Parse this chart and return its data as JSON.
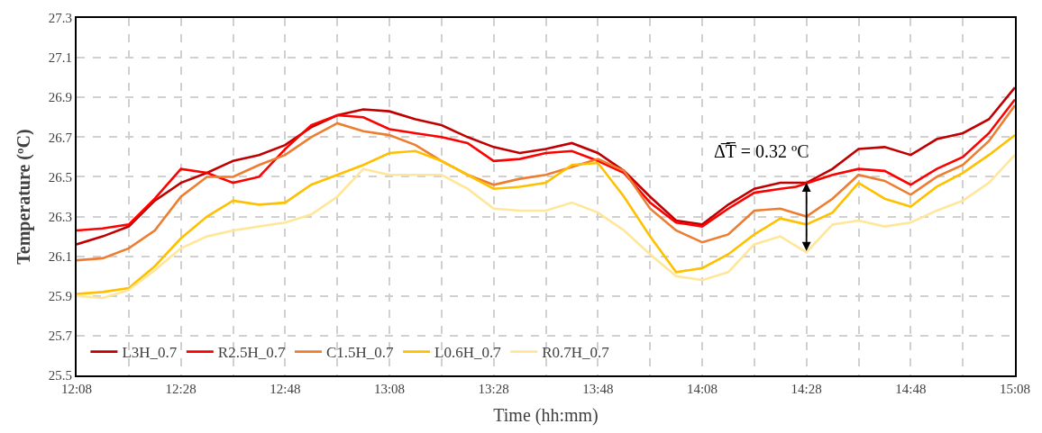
{
  "chart_data": {
    "type": "line",
    "xlabel": "Time (hh:mm)",
    "ylabel": "Temperature (ºC)",
    "x": [
      12.1333,
      12.2167,
      12.3,
      12.3833,
      12.4667,
      12.55,
      12.6333,
      12.7167,
      12.8,
      12.8833,
      12.9667,
      13.05,
      13.1333,
      13.2167,
      13.3,
      13.3833,
      13.4667,
      13.55,
      13.6333,
      13.7167,
      13.8,
      13.8833,
      13.9667,
      14.05,
      14.1333,
      14.2167,
      14.3,
      14.3833,
      14.4667,
      14.55,
      14.6333,
      14.7167,
      14.8,
      14.8833,
      14.9667,
      15.05,
      15.1333
    ],
    "series": [
      {
        "name": "L3H_0.7",
        "color": "#c00000",
        "values": [
          26.16,
          26.2,
          26.25,
          26.38,
          26.47,
          26.52,
          26.58,
          26.61,
          26.66,
          26.75,
          26.81,
          26.84,
          26.83,
          26.79,
          26.76,
          26.7,
          26.65,
          26.62,
          26.64,
          26.67,
          26.62,
          26.53,
          26.4,
          26.28,
          26.26,
          26.36,
          26.44,
          26.47,
          26.47,
          26.54,
          26.64,
          26.65,
          26.61,
          26.69,
          26.72,
          26.79,
          26.95
        ]
      },
      {
        "name": "R2.5H_0.7",
        "color": "#ff0000",
        "x": [
          12.1333,
          12.2167,
          12.3,
          12.3833,
          12.4667,
          12.55,
          12.6333,
          12.7167,
          12.8,
          12.8833,
          12.9667,
          13.05,
          13.1333,
          13.2167,
          13.3,
          13.3833,
          13.4667,
          13.55,
          13.6333,
          13.7167,
          13.8,
          13.8833,
          13.9667,
          14.05,
          14.1333,
          14.2167,
          14.3,
          14.3833,
          14.4333,
          14.55,
          14.6333,
          14.7167,
          14.8,
          14.8833,
          14.9667,
          15.05,
          15.1333
        ],
        "values": [
          26.23,
          26.24,
          26.26,
          26.39,
          26.54,
          26.52,
          26.47,
          26.5,
          26.64,
          26.76,
          26.81,
          26.8,
          26.74,
          26.72,
          26.7,
          26.67,
          26.58,
          26.59,
          26.62,
          26.63,
          26.58,
          26.52,
          26.37,
          26.27,
          26.25,
          26.34,
          26.42,
          26.44,
          26.45,
          26.51,
          26.54,
          26.53,
          26.46,
          26.54,
          26.6,
          26.72,
          26.89
        ]
      },
      {
        "name": "C1.5H_0.7",
        "color": "#ed7d31",
        "values": [
          26.08,
          26.09,
          26.14,
          26.23,
          26.4,
          26.5,
          26.5,
          26.56,
          26.61,
          26.7,
          26.77,
          26.73,
          26.71,
          26.66,
          26.58,
          26.51,
          26.46,
          26.49,
          26.51,
          26.55,
          26.59,
          26.53,
          26.34,
          26.23,
          26.17,
          26.21,
          26.33,
          26.34,
          26.3,
          26.39,
          26.51,
          26.48,
          26.41,
          26.5,
          26.56,
          26.68,
          26.86
        ]
      },
      {
        "name": "L0.6H_0.7",
        "color": "#ffc000",
        "values": [
          25.91,
          25.92,
          25.94,
          26.05,
          26.19,
          26.3,
          26.38,
          26.36,
          26.37,
          26.46,
          26.51,
          26.56,
          26.62,
          26.63,
          26.58,
          26.51,
          26.44,
          26.45,
          26.47,
          26.56,
          26.57,
          26.4,
          26.2,
          26.02,
          26.04,
          26.11,
          26.21,
          26.29,
          26.26,
          26.32,
          26.47,
          26.39,
          26.35,
          26.45,
          26.52,
          26.61,
          26.71
        ]
      },
      {
        "name": "R0.7H_0.7",
        "color": "#ffe699",
        "values": [
          25.9,
          25.89,
          25.93,
          26.03,
          26.14,
          26.2,
          26.23,
          26.25,
          26.27,
          26.31,
          26.4,
          26.54,
          26.51,
          26.51,
          26.51,
          26.44,
          26.34,
          26.33,
          26.33,
          26.37,
          26.32,
          26.23,
          26.11,
          26.0,
          25.98,
          26.02,
          26.16,
          26.2,
          26.12,
          26.26,
          26.28,
          26.25,
          26.27,
          26.33,
          26.38,
          26.47,
          26.61
        ]
      }
    ],
    "xlim": [
      12.1333,
      15.1333
    ],
    "xticks": [
      {
        "value": 12.1333,
        "label": "12:08"
      },
      {
        "value": 12.3,
        "label": null
      },
      {
        "value": 12.4667,
        "label": "12:28"
      },
      {
        "value": 12.6333,
        "label": null
      },
      {
        "value": 12.8,
        "label": "12:48"
      },
      {
        "value": 12.9667,
        "label": null
      },
      {
        "value": 13.1333,
        "label": "13:08"
      },
      {
        "value": 13.3,
        "label": null
      },
      {
        "value": 13.4667,
        "label": "13:28"
      },
      {
        "value": 13.6333,
        "label": null
      },
      {
        "value": 13.8,
        "label": "13:48"
      },
      {
        "value": 13.9667,
        "label": null
      },
      {
        "value": 14.1333,
        "label": "14:08"
      },
      {
        "value": 14.3,
        "label": null
      },
      {
        "value": 14.4667,
        "label": "14:28"
      },
      {
        "value": 14.6333,
        "label": null
      },
      {
        "value": 14.8,
        "label": "14:48"
      },
      {
        "value": 14.9667,
        "label": null
      },
      {
        "value": 15.1333,
        "label": "15:08"
      }
    ],
    "ylim": [
      25.5,
      27.3
    ],
    "yticks": [
      25.5,
      25.7,
      25.9,
      26.1,
      26.3,
      26.5,
      26.7,
      26.9,
      27.1,
      27.3
    ],
    "annotations": [
      {
        "text": "Δ̅T̅ = 0.32 ºC",
        "x": 14.4667,
        "y": 26.47
      }
    ],
    "grid": true,
    "legend": "bottom left",
    "line_style": "solid",
    "marker": "none"
  }
}
